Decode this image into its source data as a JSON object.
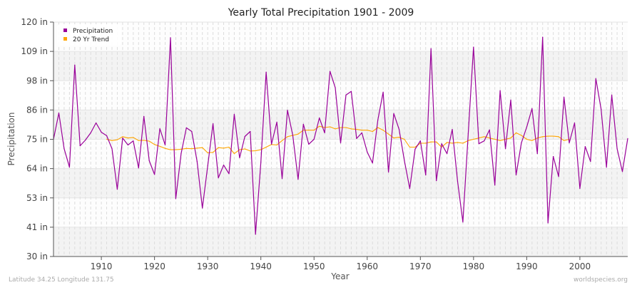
{
  "chart_data": {
    "type": "line",
    "title": "Yearly Total Precipitation 1901 - 2009",
    "xlabel": "Year",
    "ylabel": "Precipitation",
    "xlim": [
      1901,
      2009
    ],
    "ylim": [
      30,
      120
    ],
    "xticks": [
      1910,
      1920,
      1930,
      1940,
      1950,
      1960,
      1970,
      1980,
      1990,
      2000
    ],
    "yticks": [
      "30 in",
      "41 in",
      "53 in",
      "64 in",
      "75 in",
      "86 in",
      "98 in",
      "109 in",
      "120 in"
    ],
    "grid": true,
    "legend_position": "top-left",
    "series": [
      {
        "name": "Precipitation",
        "color": "#990099",
        "x_start": 1901,
        "values": [
          75.0,
          85.1,
          71.4,
          64.3,
          103.5,
          72.5,
          74.7,
          77.5,
          81.3,
          77.7,
          76.4,
          71.4,
          55.8,
          75.5,
          72.8,
          74.4,
          64.0,
          83.8,
          66.8,
          61.5,
          79.1,
          72.8,
          114.0,
          52.2,
          69.5,
          79.4,
          78.0,
          66.5,
          48.6,
          64.8,
          81.0,
          60.2,
          65.1,
          61.8,
          84.6,
          67.9,
          76.1,
          78.0,
          38.5,
          66.2,
          100.8,
          73.1,
          81.6,
          59.9,
          86.2,
          76.6,
          59.6,
          80.8,
          73.1,
          75.0,
          83.2,
          77.5,
          101.1,
          94.8,
          73.6,
          92.0,
          93.4,
          75.3,
          77.5,
          70.1,
          65.9,
          82.4,
          93.1,
          62.4,
          84.9,
          78.8,
          66.8,
          56.1,
          71.2,
          74.4,
          61.3,
          109.8,
          59.1,
          73.3,
          69.5,
          78.8,
          58.8,
          43.2,
          77.2,
          110.4,
          73.3,
          74.4,
          78.6,
          57.4,
          93.7,
          71.4,
          90.1,
          61.3,
          73.6,
          79.7,
          86.8,
          69.5,
          114.2,
          42.9,
          68.4,
          60.7,
          91.2,
          73.6,
          81.3,
          56.1,
          72.2,
          66.5,
          98.3,
          86.5,
          64.3,
          92.0,
          71.4,
          62.6,
          75.3
        ]
      },
      {
        "name": "20 Yr Trend",
        "color": "#FFA500",
        "x_start": 1911,
        "values": [
          75.0,
          74.5,
          74.8,
          76.0,
          75.5,
          75.7,
          74.5,
          74.6,
          74.3,
          73.0,
          72.3,
          71.5,
          71.0,
          71.0,
          71.2,
          71.5,
          71.4,
          71.6,
          71.8,
          69.8,
          70.0,
          71.8,
          71.6,
          72.0,
          69.5,
          71.0,
          71.3,
          70.5,
          70.6,
          71.0,
          72.0,
          73.0,
          72.8,
          74.5,
          76.0,
          76.5,
          77.0,
          78.5,
          78.5,
          78.5,
          80.0,
          79.5,
          79.8,
          79.0,
          79.5,
          79.5,
          79.0,
          78.8,
          78.5,
          78.5,
          78.0,
          79.5,
          78.5,
          77.0,
          75.5,
          75.8,
          75.0,
          72.0,
          72.0,
          73.5,
          73.5,
          74.0,
          74.0,
          72.0,
          73.8,
          73.5,
          73.8,
          73.5,
          74.5,
          75.0,
          75.5,
          76.0,
          75.5,
          75.0,
          74.5,
          75.0,
          75.5,
          77.5,
          76.5,
          75.0,
          74.5,
          75.5,
          76.0,
          76.2,
          76.2,
          76.0,
          74.5,
          75.0
        ]
      }
    ]
  },
  "footer": {
    "location": "Latitude 34.25 Longitude 131.75",
    "source": "worldspecies.org"
  }
}
